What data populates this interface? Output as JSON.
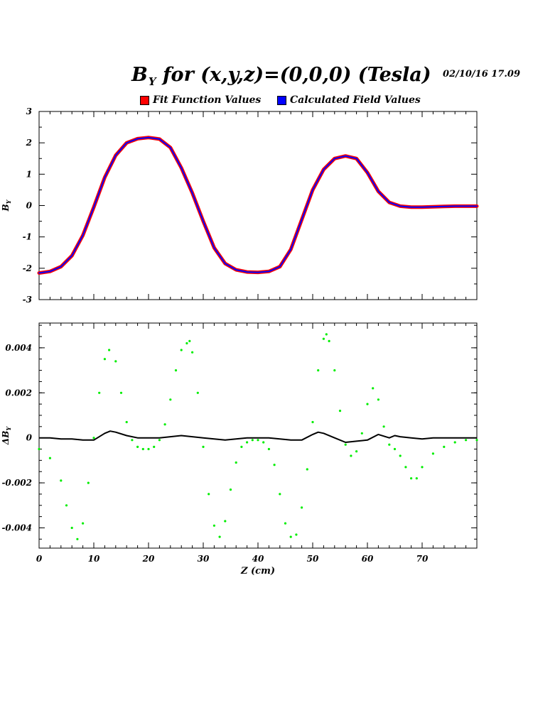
{
  "title": {
    "main": "B",
    "sub": "Y",
    "rest": " for (x,y,z)=(0,0,0)  (Tesla)"
  },
  "timestamp": "02/10/16   17.09",
  "legend": [
    {
      "label": "Fit Function Values",
      "color": "#ff0000"
    },
    {
      "label": "Calculated Field Values",
      "color": "#0000ff"
    }
  ],
  "chart_data": [
    {
      "type": "line",
      "ylabel": "B_Y",
      "xlim": [
        0,
        80
      ],
      "ylim": [
        -3,
        3
      ],
      "yticks": [
        3,
        2,
        1,
        0,
        -1,
        -2,
        -3
      ],
      "ytick_labels": [
        "3",
        "2",
        "1",
        "0",
        "-1",
        "-2",
        "-3"
      ],
      "series": [
        {
          "name": "Fit Function Values",
          "color": "#ff0000",
          "x": [
            0,
            2,
            4,
            6,
            8,
            10,
            12,
            14,
            16,
            18,
            20,
            22,
            24,
            26,
            28,
            30,
            32,
            34,
            36,
            38,
            40,
            42,
            44,
            46,
            48,
            50,
            52,
            54,
            56,
            58,
            60,
            62,
            64,
            66,
            68,
            70,
            72,
            74,
            76,
            78,
            80
          ],
          "y": [
            -2.15,
            -2.1,
            -1.95,
            -1.6,
            -0.95,
            -0.05,
            0.9,
            1.6,
            2.0,
            2.13,
            2.17,
            2.12,
            1.85,
            1.2,
            0.4,
            -0.5,
            -1.35,
            -1.85,
            -2.05,
            -2.12,
            -2.13,
            -2.1,
            -1.95,
            -1.4,
            -0.45,
            0.5,
            1.15,
            1.5,
            1.58,
            1.5,
            1.05,
            0.45,
            0.1,
            -0.02,
            -0.05,
            -0.05,
            -0.04,
            -0.03,
            -0.02,
            -0.02,
            -0.02
          ]
        },
        {
          "name": "Calculated Field Values",
          "color": "#0000ff",
          "x": [
            0,
            2,
            4,
            6,
            8,
            10,
            12,
            14,
            16,
            18,
            20,
            22,
            24,
            26,
            28,
            30,
            32,
            34,
            36,
            38,
            40,
            42,
            44,
            46,
            48,
            50,
            52,
            54,
            56,
            58,
            60,
            62,
            64,
            66,
            68,
            70,
            72,
            74,
            76,
            78,
            80
          ],
          "y": [
            -2.15,
            -2.1,
            -1.95,
            -1.6,
            -0.95,
            -0.05,
            0.9,
            1.6,
            2.0,
            2.13,
            2.17,
            2.12,
            1.85,
            1.2,
            0.4,
            -0.5,
            -1.35,
            -1.85,
            -2.05,
            -2.12,
            -2.13,
            -2.1,
            -1.95,
            -1.4,
            -0.45,
            0.5,
            1.15,
            1.5,
            1.58,
            1.5,
            1.05,
            0.45,
            0.1,
            -0.02,
            -0.05,
            -0.05,
            -0.04,
            -0.03,
            -0.02,
            -0.02,
            -0.02
          ]
        }
      ]
    },
    {
      "type": "scatter",
      "ylabel": "ΔB_Y",
      "xlabel": "Z (cm)",
      "xlim": [
        0,
        80
      ],
      "ylim": [
        -0.0049,
        0.0051
      ],
      "xticks": [
        0,
        10,
        20,
        30,
        40,
        50,
        60,
        70
      ],
      "xtick_labels": [
        "0",
        "10",
        "20",
        "30",
        "40",
        "50",
        "60",
        "70"
      ],
      "yticks": [
        0.004,
        0.002,
        0,
        -0.002,
        -0.004
      ],
      "ytick_labels": [
        "0.004",
        "0.002",
        "0",
        "-0.002",
        "-0.004"
      ],
      "series": [
        {
          "color": "#00ee00",
          "x": [
            0,
            2,
            4,
            5,
            6,
            7,
            8,
            9,
            10,
            11,
            12,
            12.8,
            14,
            15,
            16,
            17,
            18,
            19,
            20,
            21,
            22,
            23,
            24,
            25,
            26,
            27,
            27.5,
            28,
            29,
            30,
            31,
            32,
            33,
            34,
            35,
            36,
            37,
            38,
            39,
            40,
            41,
            42,
            43,
            44,
            45,
            46,
            47,
            48,
            49,
            50,
            51,
            52,
            52.5,
            53,
            54,
            55,
            56,
            57,
            58,
            59,
            60,
            61,
            62,
            63,
            64,
            65,
            66,
            67,
            68,
            69,
            70,
            72,
            74,
            76,
            78,
            80
          ],
          "y": [
            -0.0005,
            -0.0009,
            -0.0019,
            -0.003,
            -0.004,
            -0.0045,
            -0.0038,
            -0.002,
            0.0,
            0.002,
            0.0035,
            0.0039,
            0.0034,
            0.002,
            0.0007,
            -0.0001,
            -0.0004,
            -0.0005,
            -0.0005,
            -0.0004,
            -0.0001,
            0.0006,
            0.0017,
            0.003,
            0.0039,
            0.0042,
            0.0043,
            0.0038,
            0.002,
            -0.0004,
            -0.0025,
            -0.0039,
            -0.0044,
            -0.0037,
            -0.0023,
            -0.0011,
            -0.0004,
            -0.0002,
            -0.0001,
            -0.0001,
            -0.0002,
            -0.0005,
            -0.0012,
            -0.0025,
            -0.0038,
            -0.0044,
            -0.0043,
            -0.0031,
            -0.0014,
            0.0007,
            0.003,
            0.0044,
            0.0046,
            0.0043,
            0.003,
            0.0012,
            -0.0003,
            -0.0008,
            -0.0006,
            0.0002,
            0.0015,
            0.0022,
            0.0017,
            0.0005,
            -0.0003,
            -0.0005,
            -0.0008,
            -0.0013,
            -0.0018,
            -0.0018,
            -0.0013,
            -0.0007,
            -0.0004,
            -0.0002,
            -0.0001,
            -0.0001
          ]
        },
        {
          "color": "#000000",
          "x": [
            0,
            2,
            4,
            6,
            8,
            10,
            12,
            13,
            14,
            16,
            18,
            20,
            22,
            24,
            26,
            28,
            30,
            32,
            34,
            36,
            38,
            40,
            42,
            44,
            46,
            48,
            50,
            51,
            52,
            54,
            56,
            58,
            60,
            62,
            64,
            65,
            66,
            68,
            70,
            72,
            74,
            76,
            78,
            80
          ],
          "y": [
            0.0,
            0.0,
            -5e-05,
            -5e-05,
            -0.0001,
            -0.0001,
            0.0002,
            0.0003,
            0.00025,
            0.0001,
            0.0,
            0.0,
            0.0,
            5e-05,
            0.0001,
            5e-05,
            0.0,
            -5e-05,
            -0.0001,
            -5e-05,
            0.0,
            0.0,
            0.0,
            -5e-05,
            -0.0001,
            -0.0001,
            0.00015,
            0.00025,
            0.0002,
            0.0,
            -0.0002,
            -0.00015,
            -0.0001,
            0.00015,
            0.0,
            0.0001,
            5e-05,
            0.0,
            -5e-05,
            0.0,
            0.0,
            0.0,
            0.0,
            0.0
          ]
        }
      ]
    }
  ]
}
